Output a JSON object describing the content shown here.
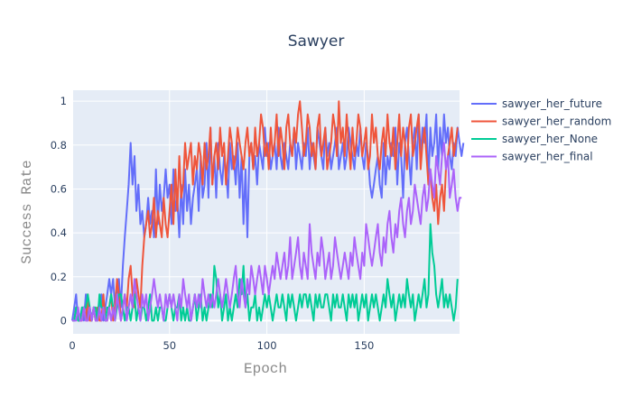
{
  "chart_data": {
    "type": "line",
    "title": "Sawyer",
    "xlabel": "Epoch",
    "ylabel": "Success Rate",
    "xlim": [
      0,
      199
    ],
    "ylim": [
      -0.06,
      1.05
    ],
    "xticks": [
      0,
      50,
      100,
      150
    ],
    "yticks": [
      0,
      0.2,
      0.4,
      0.6,
      0.8,
      1
    ],
    "ytick_labels": [
      "0",
      "0.2",
      "0.4",
      "0.6",
      "0.8",
      "1"
    ],
    "grid": true,
    "legend_position": "top-right, outside plot",
    "plot_bgcolor": "#e5ecf6",
    "series": [
      {
        "name": "sawyer_her_future",
        "color": "#636efa",
        "values": [
          0,
          0.06,
          0.12,
          0,
          0,
          0.06,
          0,
          0.12,
          0,
          0.06,
          0,
          0.06,
          0,
          0,
          0.06,
          0.12,
          0,
          0.06,
          0.12,
          0.19,
          0.12,
          0.19,
          0.06,
          0.12,
          0.19,
          0.06,
          0.25,
          0.38,
          0.5,
          0.62,
          0.81,
          0.62,
          0.75,
          0.5,
          0.62,
          0.44,
          0.5,
          0.38,
          0.44,
          0.56,
          0.44,
          0.5,
          0.38,
          0.69,
          0.44,
          0.62,
          0.5,
          0.56,
          0.69,
          0.56,
          0.62,
          0.44,
          0.69,
          0.5,
          0.56,
          0.38,
          0.62,
          0.44,
          0.69,
          0.5,
          0.62,
          0.44,
          0.56,
          0.62,
          0.69,
          0.5,
          0.75,
          0.56,
          0.62,
          0.81,
          0.56,
          0.88,
          0.62,
          0.75,
          0.56,
          0.81,
          0.69,
          0.62,
          0.75,
          0.69,
          0.56,
          0.81,
          0.69,
          0.75,
          0.62,
          0.81,
          0.56,
          0.75,
          0.44,
          0.69,
          0.38,
          0.75,
          0.81,
          0.69,
          0.75,
          0.62,
          0.81,
          0.75,
          0.69,
          0.88,
          0.75,
          0.81,
          0.69,
          0.75,
          0.81,
          0.69,
          0.88,
          0.75,
          0.69,
          0.81,
          0.75,
          0.69,
          0.81,
          0.75,
          0.88,
          0.69,
          0.81,
          0.75,
          0.69,
          0.81,
          0.75,
          0.88,
          0.69,
          0.81,
          0.75,
          0.69,
          0.88,
          0.81,
          0.75,
          0.69,
          0.88,
          0.75,
          0.81,
          0.69,
          0.75,
          0.81,
          0.88,
          0.69,
          0.75,
          0.81,
          0.69,
          0.75,
          0.88,
          0.81,
          0.75,
          0.69,
          0.81,
          0.75,
          0.88,
          0.75,
          0.69,
          0.81,
          0.75,
          0.62,
          0.56,
          0.62,
          0.69,
          0.75,
          0.62,
          0.56,
          0.81,
          0.62,
          0.75,
          0.69,
          0.81,
          0.75,
          0.88,
          0.62,
          0.81,
          0.75,
          0.56,
          0.81,
          0.88,
          0.75,
          0.62,
          0.81,
          0.88,
          0.69,
          0.94,
          0.75,
          0.88,
          0.81,
          0.94,
          0.62,
          0.88,
          0.75,
          0.81,
          0.94,
          0.69,
          0.88,
          0.75,
          0.94,
          0.81,
          0.88,
          0.75,
          0.69,
          0.81,
          0.75,
          0.88,
          0.81,
          0.75,
          0.81
        ]
      },
      {
        "name": "sawyer_her_random",
        "color": "#ef553b",
        "values": [
          0,
          0,
          0.06,
          0,
          0,
          0,
          0.06,
          0,
          0.12,
          0,
          0,
          0.06,
          0,
          0.06,
          0,
          0,
          0.12,
          0,
          0,
          0.06,
          0.12,
          0,
          0.06,
          0.19,
          0.12,
          0,
          0.06,
          0.12,
          0.06,
          0.19,
          0.25,
          0.12,
          0.06,
          0.19,
          0.12,
          0.06,
          0.25,
          0.38,
          0.44,
          0.5,
          0.38,
          0.44,
          0.56,
          0.38,
          0.5,
          0.44,
          0.38,
          0.56,
          0.44,
          0.38,
          0.5,
          0.62,
          0.44,
          0.69,
          0.5,
          0.75,
          0.56,
          0.62,
          0.81,
          0.69,
          0.75,
          0.81,
          0.62,
          0.75,
          0.69,
          0.81,
          0.75,
          0.62,
          0.81,
          0.69,
          0.75,
          0.88,
          0.62,
          0.75,
          0.81,
          0.69,
          0.88,
          0.75,
          0.81,
          0.62,
          0.75,
          0.88,
          0.81,
          0.69,
          0.75,
          0.88,
          0.81,
          0.75,
          0.69,
          0.81,
          0.88,
          0.75,
          0.81,
          0.69,
          0.88,
          0.75,
          0.81,
          0.94,
          0.88,
          0.75,
          0.81,
          0.69,
          0.88,
          0.75,
          0.81,
          0.94,
          0.75,
          0.88,
          0.81,
          0.69,
          0.88,
          0.94,
          0.81,
          0.75,
          0.88,
          0.81,
          0.94,
          1,
          0.88,
          0.75,
          0.81,
          0.94,
          0.88,
          0.75,
          0.81,
          0.69,
          0.88,
          0.94,
          0.75,
          0.81,
          0.88,
          0.69,
          0.75,
          0.81,
          0.94,
          0.88,
          0.75,
          1,
          0.81,
          0.88,
          0.75,
          0.94,
          0.81,
          0.69,
          0.88,
          0.75,
          0.81,
          0.94,
          0.88,
          0.75,
          0.81,
          0.88,
          0.69,
          0.75,
          0.94,
          0.81,
          0.88,
          0.75,
          0.69,
          0.81,
          0.88,
          0.75,
          0.94,
          0.81,
          0.75,
          0.88,
          0.69,
          0.81,
          0.94,
          0.75,
          0.88,
          0.81,
          0.69,
          0.88,
          0.94,
          0.75,
          0.81,
          0.88,
          0.94,
          0.69,
          0.81,
          0.88,
          0.75,
          0.62,
          0.69,
          0.56,
          0.5,
          0.62,
          0.44,
          0.56,
          0.62,
          0.5,
          0.69,
          0.75,
          0.81,
          0.88,
          0.75,
          0.81,
          0.88
        ]
      },
      {
        "name": "sawyer_her_None",
        "color": "#00cc96",
        "values": [
          0,
          0,
          0.06,
          0,
          0,
          0.06,
          0.06,
          0.06,
          0.12,
          0.06,
          0,
          0.06,
          0.06,
          0,
          0.12,
          0.06,
          0.06,
          0,
          0.06,
          0.06,
          0.12,
          0.06,
          0,
          0.06,
          0.12,
          0.12,
          0.06,
          0,
          0.06,
          0.06,
          0,
          0.06,
          0.12,
          0,
          0.06,
          0,
          0.06,
          0.06,
          0,
          0.06,
          0.12,
          0,
          0,
          0.06,
          0,
          0.06,
          0.06,
          0,
          0,
          0.06,
          0.12,
          0.06,
          0,
          0.06,
          0.06,
          0.12,
          0,
          0.06,
          0,
          0.06,
          0,
          0,
          0.06,
          0.12,
          0,
          0.06,
          0.12,
          0,
          0.06,
          0,
          0.06,
          0.12,
          0.06,
          0.25,
          0.19,
          0.06,
          0.12,
          0,
          0.06,
          0.12,
          0,
          0.06,
          0,
          0.06,
          0.12,
          0.06,
          0.19,
          0.12,
          0.25,
          0.06,
          0.12,
          0,
          0.06,
          0.06,
          0.12,
          0,
          0.06,
          0,
          0.06,
          0.12,
          0.06,
          0.12,
          0.06,
          0,
          0.06,
          0.12,
          0.06,
          0.06,
          0.12,
          0.06,
          0,
          0.12,
          0.06,
          0.12,
          0.06,
          0,
          0.06,
          0.12,
          0.06,
          0.12,
          0.12,
          0.06,
          0.12,
          0.06,
          0,
          0.12,
          0.06,
          0.12,
          0.06,
          0.06,
          0.12,
          0.12,
          0.06,
          0,
          0.12,
          0.06,
          0.12,
          0.06,
          0.06,
          0.12,
          0.06,
          0,
          0.12,
          0.06,
          0.12,
          0.06,
          0.12,
          0,
          0.06,
          0.12,
          0.06,
          0.12,
          0,
          0.06,
          0.12,
          0.06,
          0.12,
          0.06,
          0,
          0.06,
          0.12,
          0.06,
          0.19,
          0.12,
          0.06,
          0.12,
          0,
          0.06,
          0.12,
          0.06,
          0.12,
          0.06,
          0.19,
          0.12,
          0.06,
          0.12,
          0,
          0.06,
          0.12,
          0.06,
          0.12,
          0.19,
          0.06,
          0.12,
          0.44,
          0.31,
          0.25,
          0.12,
          0.06,
          0.12,
          0.19,
          0.06,
          0.12,
          0.06,
          0.12,
          0.06,
          0,
          0.06,
          0.19
        ]
      },
      {
        "name": "sawyer_her_final",
        "color": "#ab63fa",
        "values": [
          0,
          0,
          0,
          0.06,
          0,
          0,
          0.06,
          0,
          0,
          0.06,
          0,
          0.06,
          0,
          0,
          0.06,
          0,
          0.06,
          0,
          0,
          0.06,
          0,
          0.06,
          0,
          0.12,
          0.06,
          0,
          0.06,
          0.12,
          0,
          0.06,
          0.12,
          0.06,
          0.19,
          0.12,
          0.06,
          0,
          0.12,
          0.06,
          0.12,
          0,
          0.06,
          0.12,
          0.19,
          0.12,
          0.06,
          0.12,
          0.06,
          0,
          0.12,
          0.06,
          0.12,
          0.06,
          0.12,
          0.06,
          0,
          0.12,
          0.06,
          0.19,
          0.12,
          0.06,
          0.12,
          0,
          0.06,
          0.12,
          0.06,
          0.12,
          0.06,
          0.19,
          0.12,
          0.06,
          0.12,
          0.06,
          0.12,
          0.06,
          0.12,
          0.19,
          0.12,
          0.06,
          0.12,
          0.19,
          0.12,
          0.06,
          0.12,
          0.19,
          0.25,
          0.12,
          0.06,
          0.19,
          0.12,
          0.06,
          0.19,
          0.12,
          0.25,
          0.19,
          0.12,
          0.19,
          0.25,
          0.19,
          0.12,
          0.25,
          0.19,
          0.12,
          0.19,
          0.25,
          0.19,
          0.31,
          0.25,
          0.19,
          0.25,
          0.31,
          0.19,
          0.25,
          0.38,
          0.19,
          0.25,
          0.31,
          0.38,
          0.25,
          0.19,
          0.31,
          0.25,
          0.19,
          0.44,
          0.31,
          0.25,
          0.19,
          0.31,
          0.25,
          0.38,
          0.31,
          0.19,
          0.25,
          0.31,
          0.19,
          0.25,
          0.38,
          0.31,
          0.25,
          0.19,
          0.25,
          0.31,
          0.25,
          0.19,
          0.31,
          0.25,
          0.38,
          0.31,
          0.25,
          0.19,
          0.31,
          0.25,
          0.44,
          0.38,
          0.31,
          0.25,
          0.31,
          0.38,
          0.44,
          0.31,
          0.25,
          0.38,
          0.31,
          0.44,
          0.5,
          0.38,
          0.31,
          0.44,
          0.38,
          0.5,
          0.56,
          0.44,
          0.38,
          0.5,
          0.56,
          0.44,
          0.5,
          0.62,
          0.56,
          0.5,
          0.44,
          0.56,
          0.62,
          0.5,
          0.56,
          0.69,
          0.62,
          0.56,
          0.75,
          0.69,
          0.62,
          0.75,
          0.81,
          0.69,
          0.75,
          0.56,
          0.62,
          0.69,
          0.56,
          0.5,
          0.56,
          0.56
        ]
      }
    ]
  }
}
